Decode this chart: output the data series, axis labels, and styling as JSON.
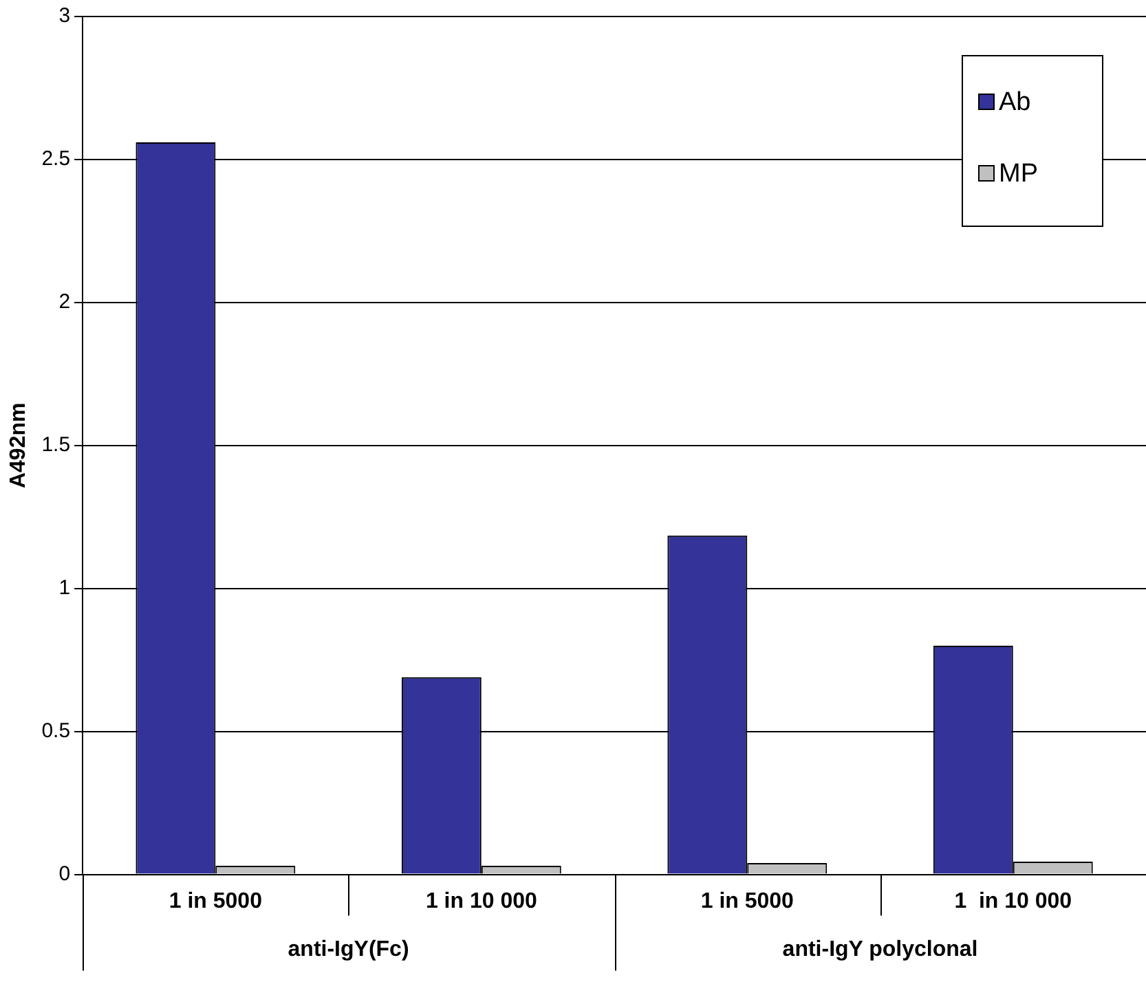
{
  "chart_data": {
    "type": "bar",
    "ylabel": "A492nm",
    "categories": [
      "1 in 5000",
      "1 in 10 000",
      "1 in 5000",
      "1  in 10 000"
    ],
    "series": [
      {
        "name": "Ab",
        "color": "#333399",
        "values": [
          2.56,
          0.69,
          1.185,
          0.8
        ]
      },
      {
        "name": "MP",
        "color": "#c0c0c0",
        "values": [
          0.03,
          0.03,
          0.04,
          0.045
        ]
      }
    ],
    "annotations": [
      "anti-IgY(Fc)",
      "anti-IgY polyclonal"
    ],
    "ylim": [
      0,
      3
    ],
    "yticks": [
      0,
      0.5,
      1,
      1.5,
      2,
      2.5,
      3
    ],
    "grid": "y",
    "legend": "top right"
  }
}
